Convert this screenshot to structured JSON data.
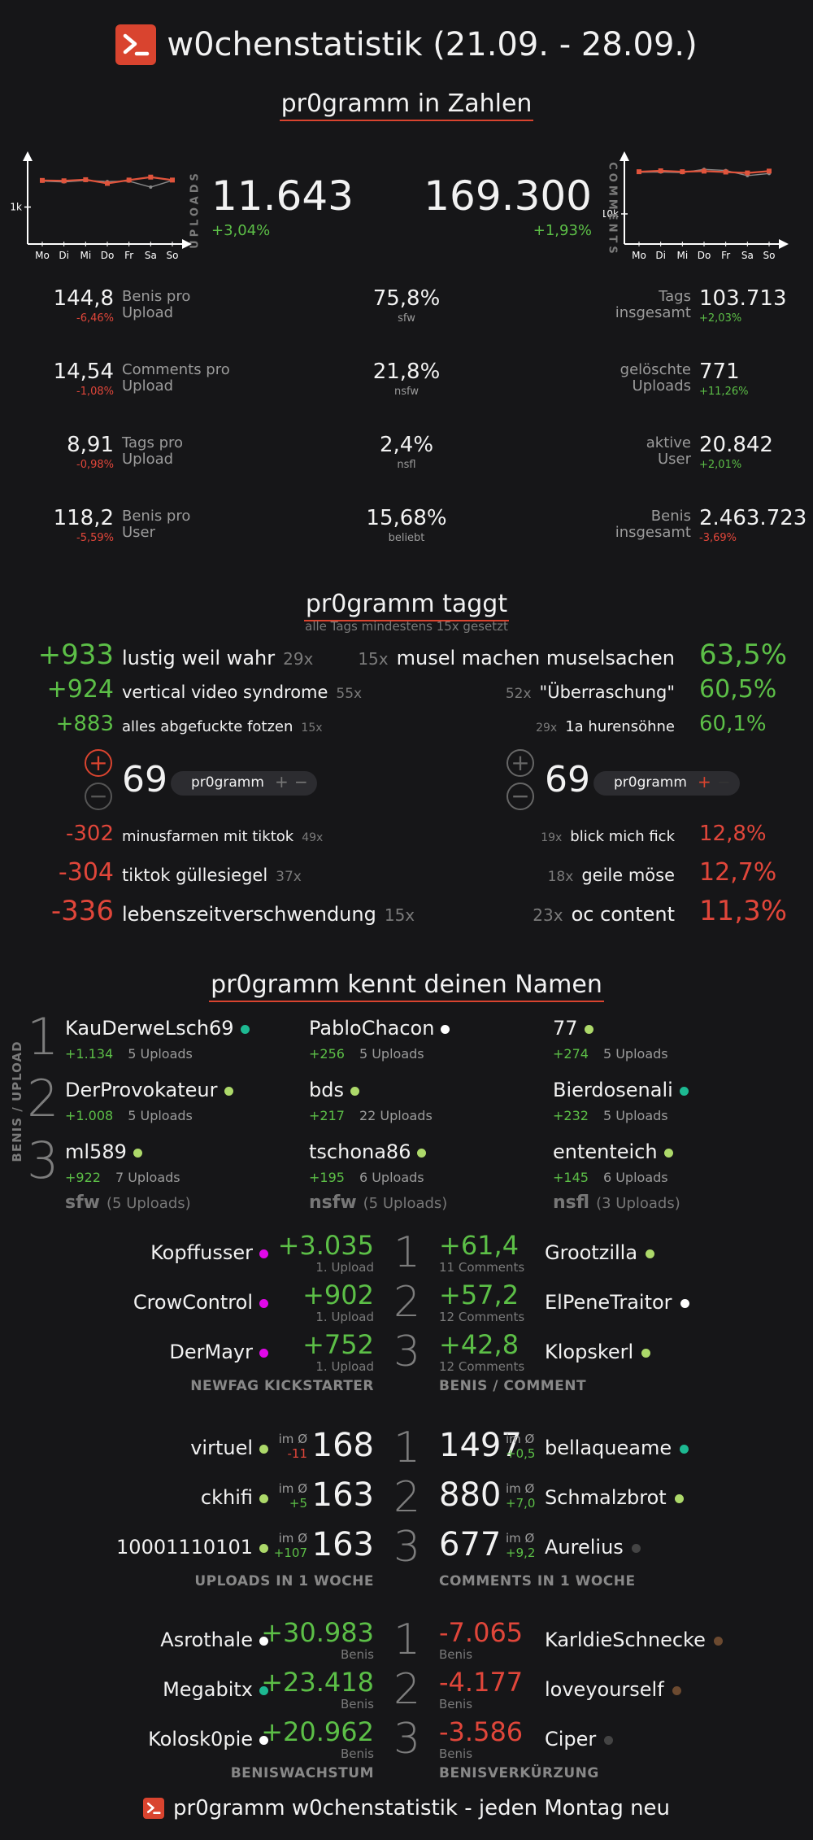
{
  "header": {
    "title": "w0chenstatistik (21.09. - 28.09.)"
  },
  "zahlen": {
    "title": "pr0gramm in Zahlen",
    "uploads": {
      "side_label": "UPLOADS",
      "value": "11.643",
      "change": "+3,04%"
    },
    "comments": {
      "side_label": "COMMENTS",
      "value": "169.300",
      "change": "+1,93%"
    },
    "chart_left": {
      "ytick": "1k"
    },
    "chart_right": {
      "ytick": "10k"
    },
    "left_stats": [
      {
        "value": "144,8",
        "change": "-6,46%",
        "label1": "Benis pro",
        "label2": "Upload"
      },
      {
        "value": "14,54",
        "change": "-1,08%",
        "label1": "Comments pro",
        "label2": "Upload"
      },
      {
        "value": "8,91",
        "change": "-0,98%",
        "label1": "Tags pro",
        "label2": "Upload"
      },
      {
        "value": "118,2",
        "change": "-5,59%",
        "label1": "Benis pro",
        "label2": "User"
      }
    ],
    "mid_stats": [
      {
        "value": "75,8%",
        "label": "sfw"
      },
      {
        "value": "21,8%",
        "label": "nsfw"
      },
      {
        "value": "2,4%",
        "label": "nsfl"
      },
      {
        "value": "15,68%",
        "label": "beliebt"
      }
    ],
    "right_stats": [
      {
        "label1": "Tags",
        "label2": "insgesamt",
        "value": "103.713",
        "change": "+2,03%"
      },
      {
        "label1": "gelöschte",
        "label2": "Uploads",
        "value": "771",
        "change": "+11,26%"
      },
      {
        "label1": "aktive",
        "label2": "User",
        "value": "20.842",
        "change": "+2,01%"
      },
      {
        "label1": "Benis",
        "label2": "insgesamt",
        "value": "2.463.723",
        "change": "-3,69%"
      }
    ]
  },
  "chart_data": [
    {
      "type": "line",
      "x": [
        "Mo",
        "Di",
        "Mi",
        "Do",
        "Fr",
        "Sa",
        "So"
      ],
      "series": [
        {
          "values": [
            1720,
            1710,
            1740,
            1640,
            1730,
            1810,
            1730
          ],
          "color": "#e0543c"
        },
        {
          "values": [
            1700,
            1680,
            1720,
            1690,
            1700,
            1540,
            1720
          ],
          "color": "#8a8a8a"
        }
      ],
      "ylim": [
        0,
        2200
      ],
      "ytick": 1000,
      "ytick_label": "1k"
    },
    {
      "type": "line",
      "x": [
        "Mo",
        "Di",
        "Mi",
        "Do",
        "Fr",
        "Sa",
        "So"
      ],
      "series": [
        {
          "values": [
            24000,
            24300,
            24000,
            24200,
            23900,
            23600,
            24200
          ],
          "color": "#e0543c"
        },
        {
          "values": [
            23800,
            23900,
            23700,
            24800,
            24400,
            22700,
            23400
          ],
          "color": "#8a8a8a"
        }
      ],
      "ylim": [
        0,
        27000
      ],
      "ytick": 10000,
      "ytick_label": "10k"
    }
  ],
  "taggt": {
    "title": "pr0gramm taggt",
    "subtitle": "alle Tags mindestens 15x gesetzt",
    "top_left": [
      {
        "score": "+933",
        "tag": "lustig weil wahr",
        "count": "29x"
      },
      {
        "score": "+924",
        "tag": "vertical video syndrome",
        "count": "55x"
      },
      {
        "score": "+883",
        "tag": "alles abgefuckte fotzen",
        "count": "15x"
      }
    ],
    "top_right": [
      {
        "count": "15x",
        "tag": "musel machen muselsachen",
        "pct": "63,5%"
      },
      {
        "count": "52x",
        "tag": "\"Überraschung\"",
        "pct": "60,5%"
      },
      {
        "count": "29x",
        "tag": "1a hurensöhne",
        "pct": "60,1%"
      }
    ],
    "vote_left": {
      "number": "69",
      "pill": "pr0gramm",
      "plus": "+",
      "minus": "−"
    },
    "vote_right": {
      "number": "69",
      "pill": "pr0gramm",
      "plus": "+",
      "minus": "−"
    },
    "bottom_left": [
      {
        "score": "-302",
        "tag": "minusfarmen mit tiktok",
        "count": "49x"
      },
      {
        "score": "-304",
        "tag": "tiktok güllesiegel",
        "count": "37x"
      },
      {
        "score": "-336",
        "tag": "lebenszeitverschwendung",
        "count": "15x"
      }
    ],
    "bottom_right": [
      {
        "count": "19x",
        "tag": "blick mich fick",
        "pct": "12,8%"
      },
      {
        "count": "18x",
        "tag": "geile möse",
        "pct": "12,7%"
      },
      {
        "count": "23x",
        "tag": "oc content",
        "pct": "11,3%"
      }
    ]
  },
  "namen": {
    "title": "pr0gramm kennt deinen Namen",
    "side_label": "BENIS / UPLOAD",
    "ranks": [
      "1",
      "2",
      "3"
    ],
    "cols": [
      {
        "footer": "sfw",
        "footer_sub": "(5 Uploads)",
        "users": [
          {
            "name": "KauDerweLsch69",
            "benis": "+1.134",
            "uploads": "5 Uploads",
            "dot": "#1db992"
          },
          {
            "name": "DerProvokateur",
            "benis": "+1.008",
            "uploads": "5 Uploads",
            "dot": "#add96a"
          },
          {
            "name": "ml589",
            "benis": "+922",
            "uploads": "7 Uploads",
            "dot": "#add96a"
          }
        ]
      },
      {
        "footer": "nsfw",
        "footer_sub": "(5 Uploads)",
        "users": [
          {
            "name": "PabloChacon",
            "benis": "+256",
            "uploads": "5 Uploads",
            "dot": "#ffffff"
          },
          {
            "name": "bds",
            "benis": "+217",
            "uploads": "22 Uploads",
            "dot": "#add96a"
          },
          {
            "name": "tschona86",
            "benis": "+195",
            "uploads": "6 Uploads",
            "dot": "#add96a"
          }
        ]
      },
      {
        "footer": "nsfl",
        "footer_sub": "(3 Uploads)",
        "users": [
          {
            "name": "77",
            "benis": "+274",
            "uploads": "5 Uploads",
            "dot": "#add96a"
          },
          {
            "name": "Bierdosenali",
            "benis": "+232",
            "uploads": "5 Uploads",
            "dot": "#1db992"
          },
          {
            "name": "ententeich",
            "benis": "+145",
            "uploads": "6 Uploads",
            "dot": "#add96a"
          }
        ]
      }
    ]
  },
  "boards": [
    {
      "left_caption": "NEWFAG KICKSTARTER",
      "right_caption": "BENIS / COMMENT",
      "left": [
        {
          "name": "Kopffusser",
          "dot": "#e108e9",
          "value": "+3.035",
          "sub": "1. Upload"
        },
        {
          "name": "CrowControl",
          "dot": "#e108e9",
          "value": "+902",
          "sub": "1. Upload"
        },
        {
          "name": "DerMayr",
          "dot": "#e108e9",
          "value": "+752",
          "sub": "1. Upload"
        }
      ],
      "right": [
        {
          "name": "Grootzilla",
          "dot": "#add96a",
          "value": "+61,4",
          "sub": "11 Comments"
        },
        {
          "name": "ElPeneTraitor",
          "dot": "#ffffff",
          "value": "+57,2",
          "sub": "12 Comments"
        },
        {
          "name": "Klopskerl",
          "dot": "#add96a",
          "value": "+42,8",
          "sub": "12 Comments"
        }
      ]
    },
    {
      "left_caption": "UPLOADS IN 1 WOCHE",
      "right_caption": "COMMENTS IN 1 WOCHE",
      "left": [
        {
          "name": "virtuel",
          "dot": "#add96a",
          "value": "168",
          "avg_label": "im Ø",
          "avg": "-11"
        },
        {
          "name": "ckhifi",
          "dot": "#add96a",
          "value": "163",
          "avg_label": "im Ø",
          "avg": "+5"
        },
        {
          "name": "10001110101",
          "dot": "#add96a",
          "value": "163",
          "avg_label": "im Ø",
          "avg": "+107"
        }
      ],
      "right": [
        {
          "name": "bellaqueame",
          "dot": "#1db992",
          "value": "1497",
          "avg_label": "im Ø",
          "avg": "+0,5"
        },
        {
          "name": "Schmalzbrot",
          "dot": "#add96a",
          "value": "880",
          "avg_label": "im Ø",
          "avg": "+7,0"
        },
        {
          "name": "Aurelius",
          "dot": "#444444",
          "value": "677",
          "avg_label": "im Ø",
          "avg": "+9,2"
        }
      ]
    },
    {
      "left_caption": "BENISWACHSTUM",
      "right_caption": "BENISVERKÜRZUNG",
      "left": [
        {
          "name": "Asrothale",
          "dot": "#ffffff",
          "value": "+30.983",
          "sub": "Benis"
        },
        {
          "name": "Megabitx",
          "dot": "#1db992",
          "value": "+23.418",
          "sub": "Benis"
        },
        {
          "name": "Kolosk0pie",
          "dot": "#ffffff",
          "value": "+20.962",
          "sub": "Benis"
        }
      ],
      "right": [
        {
          "name": "KarldieSchnecke",
          "dot": "#6c4a30",
          "value": "-7.065",
          "sub": "Benis"
        },
        {
          "name": "loveyourself",
          "dot": "#6c4a30",
          "value": "-4.177",
          "sub": "Benis"
        },
        {
          "name": "Ciper",
          "dot": "#444444",
          "value": "-3.586",
          "sub": "Benis"
        }
      ]
    }
  ],
  "footer": {
    "text": "pr0gramm w0chenstatistik - jeden Montag neu"
  },
  "colors": {
    "background": "#161618",
    "accent": "#d9442f",
    "positive": "#5cbf47",
    "negative": "#e0463a"
  }
}
